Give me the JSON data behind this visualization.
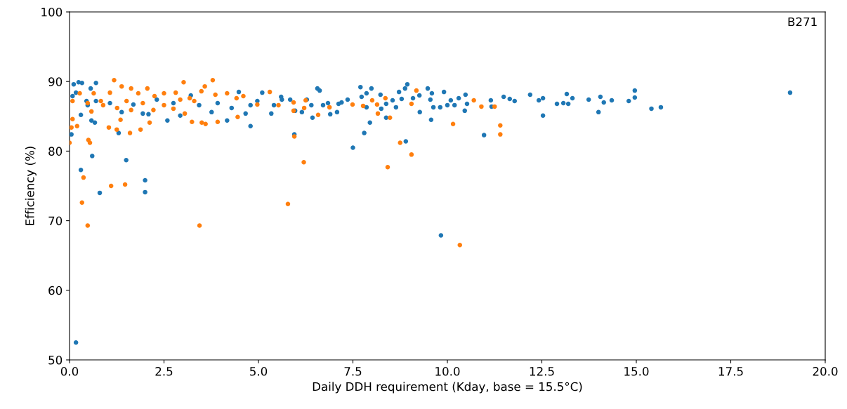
{
  "chart_data": {
    "type": "scatter",
    "xlabel": "Daily DDH requirement (Kday, base = 15.5°C)",
    "ylabel": "Efficiency (%)",
    "annotations": [
      "B271"
    ],
    "xlim": [
      0,
      20
    ],
    "ylim": [
      50,
      100
    ],
    "xticks": [
      {
        "value": 0,
        "label": "0.0"
      },
      {
        "value": 2.5,
        "label": "2.5"
      },
      {
        "value": 5,
        "label": "5.0"
      },
      {
        "value": 7.5,
        "label": "7.5"
      },
      {
        "value": 10,
        "label": "10.0"
      },
      {
        "value": 12.5,
        "label": "12.5"
      },
      {
        "value": 15,
        "label": "15.0"
      },
      {
        "value": 17.5,
        "label": "17.5"
      },
      {
        "value": 20,
        "label": "20.0"
      }
    ],
    "yticks": [
      50,
      60,
      70,
      80,
      90,
      100
    ],
    "grid": false,
    "legend": false,
    "marker": "circle",
    "series": [
      {
        "color": "#1f77b4",
        "x": [
          0.17,
          0.3,
          0.6,
          0.8,
          1.5,
          2.0,
          2.0,
          1.3,
          7.5,
          7.8,
          7.95,
          8.9,
          9.83,
          10.97,
          5.95,
          19.07,
          0.11,
          0.24,
          0.33,
          0.7,
          0.56,
          0.17,
          0.08,
          0.45,
          0.7,
          0.3,
          0.58,
          0.67,
          0.05,
          1.38,
          1.94,
          2.09,
          2.59,
          2.93,
          3.21,
          3.76,
          4.17,
          4.48,
          5.1,
          4.79,
          4.66,
          4.79,
          4.97,
          5.34,
          5.41,
          5.62,
          4.29,
          3.92,
          3.43,
          2.75,
          2.31,
          1.69,
          1.07,
          0.48,
          5.6,
          5.84,
          5.97,
          6.15,
          6.28,
          6.4,
          6.43,
          6.56,
          6.62,
          6.71,
          6.84,
          6.9,
          7.08,
          7.12,
          7.2,
          7.36,
          7.7,
          7.73,
          7.86,
          7.86,
          7.99,
          8.23,
          8.25,
          8.38,
          8.38,
          8.55,
          8.64,
          8.72,
          8.79,
          8.88,
          8.94,
          9.09,
          9.26,
          9.27,
          9.48,
          9.55,
          9.59,
          9.63,
          9.57,
          9.81,
          9.91,
          10.0,
          10.09,
          10.19,
          10.3,
          10.48,
          10.52,
          10.46,
          11.15,
          11.17,
          11.49,
          11.65,
          11.78,
          12.19,
          12.42,
          12.53,
          12.53,
          12.9,
          13.07,
          13.16,
          13.2,
          13.31,
          13.74,
          14.0,
          14.05,
          14.14,
          14.35,
          14.8,
          14.96,
          14.96,
          15.4,
          15.65
        ],
        "values": [
          52.5,
          77.3,
          79.3,
          74.0,
          78.7,
          75.8,
          74.1,
          82.6,
          80.5,
          82.6,
          84.1,
          81.4,
          67.9,
          82.3,
          82.4,
          88.4,
          89.6,
          89.9,
          89.8,
          89.8,
          89.0,
          88.4,
          87.9,
          87.2,
          87.2,
          85.2,
          84.4,
          84.1,
          82.4,
          85.6,
          85.4,
          85.3,
          84.4,
          85.1,
          88.0,
          85.6,
          84.4,
          88.5,
          88.4,
          83.6,
          85.4,
          86.6,
          87.2,
          85.4,
          86.6,
          87.4,
          86.2,
          86.9,
          86.6,
          86.9,
          87.4,
          86.7,
          86.9,
          86.6,
          87.8,
          87.4,
          85.8,
          85.6,
          87.4,
          86.6,
          84.8,
          89.0,
          88.7,
          86.6,
          86.9,
          85.3,
          85.6,
          86.8,
          87.0,
          87.4,
          89.2,
          87.8,
          88.3,
          86.3,
          89.0,
          88.1,
          86.1,
          86.8,
          84.8,
          87.3,
          86.3,
          88.5,
          87.5,
          89.0,
          89.6,
          87.6,
          88.0,
          85.6,
          89.0,
          87.4,
          88.3,
          86.3,
          84.5,
          86.3,
          88.5,
          86.6,
          87.3,
          86.6,
          87.6,
          88.1,
          86.8,
          85.8,
          87.3,
          86.4,
          87.8,
          87.5,
          87.2,
          88.1,
          87.3,
          87.6,
          85.1,
          86.8,
          86.9,
          88.2,
          86.8,
          87.6,
          87.4,
          85.6,
          87.8,
          87.0,
          87.3,
          87.2,
          88.7,
          87.7,
          86.1,
          86.3
        ]
      },
      {
        "color": "#ff7f0e",
        "x": [
          0.0,
          0.37,
          0.33,
          0.48,
          0.5,
          1.1,
          1.47,
          1.6,
          1.88,
          3.44,
          3.6,
          3.5,
          5.95,
          6.2,
          5.78,
          8.42,
          8.75,
          9.05,
          10.15,
          10.33,
          11.4,
          11.4,
          10.9,
          10.7,
          5.93,
          5.93,
          6.21,
          6.25,
          6.58,
          6.88,
          7.49,
          7.77,
          8.01,
          8.14,
          8.16,
          8.36,
          8.48,
          9.05,
          9.18,
          11.25,
          1.18,
          3.02,
          3.79,
          0.27,
          0.08,
          0.08,
          0.2,
          0.05,
          0.54,
          1.04,
          1.25,
          1.35,
          2.12,
          3.24,
          3.92,
          4.45,
          5.3,
          4.97,
          5.53,
          0.48,
          0.64,
          0.89,
          1.07,
          1.38,
          1.63,
          1.82,
          2.06,
          2.25,
          2.5,
          2.81,
          2.93,
          3.18,
          3.49,
          3.58,
          3.86,
          4.17,
          4.42,
          4.6,
          1.51,
          1.94,
          2.5,
          2.75,
          3.3,
          0.83,
          1.26,
          1.63,
          2.22,
          3.05,
          0.58
        ],
        "values": [
          81.2,
          76.2,
          72.6,
          69.3,
          81.6,
          75.0,
          75.2,
          82.6,
          83.1,
          69.3,
          83.9,
          84.1,
          82.1,
          78.4,
          72.4,
          77.7,
          81.2,
          79.5,
          83.9,
          66.5,
          83.7,
          82.4,
          86.4,
          87.3,
          87.0,
          85.8,
          86.2,
          87.3,
          85.2,
          86.3,
          86.7,
          86.5,
          87.3,
          86.7,
          85.4,
          87.6,
          84.8,
          86.8,
          88.7,
          86.4,
          90.2,
          89.9,
          90.2,
          88.3,
          87.2,
          84.6,
          83.6,
          83.4,
          81.2,
          83.4,
          83.1,
          84.5,
          84.1,
          84.2,
          84.2,
          84.9,
          88.5,
          86.7,
          86.6,
          86.9,
          88.3,
          86.6,
          88.4,
          89.3,
          89.0,
          88.3,
          89.0,
          87.9,
          88.3,
          88.4,
          87.4,
          87.6,
          88.6,
          89.3,
          88.1,
          88.3,
          87.6,
          87.9,
          87.2,
          86.9,
          86.6,
          86.1,
          87.2,
          87.2,
          86.2,
          85.9,
          85.9,
          85.4,
          85.7
        ]
      }
    ]
  }
}
